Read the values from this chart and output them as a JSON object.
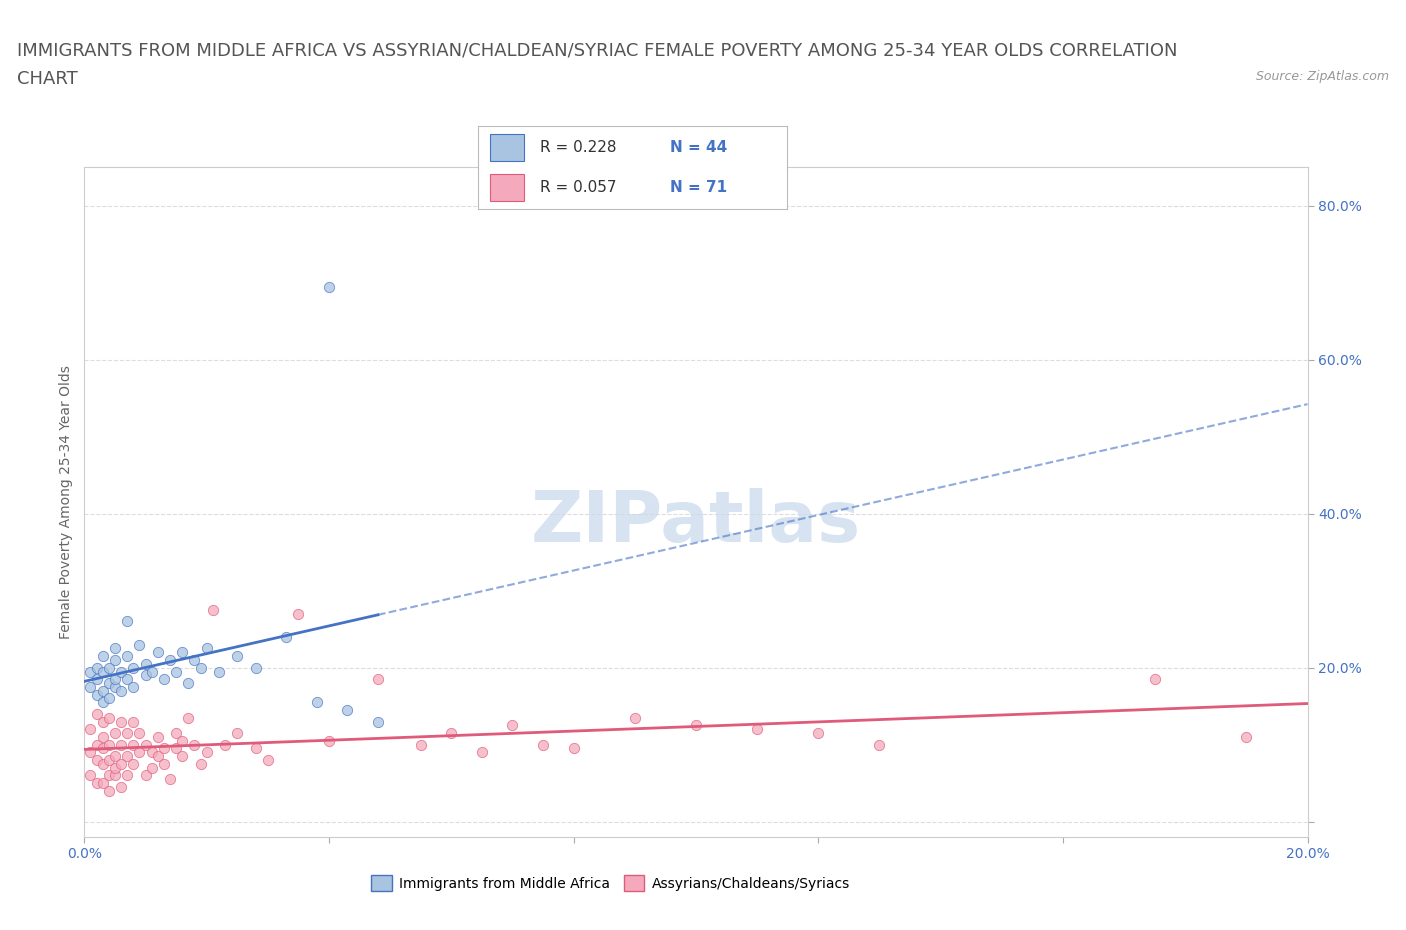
{
  "title_line1": "IMMIGRANTS FROM MIDDLE AFRICA VS ASSYRIAN/CHALDEAN/SYRIAC FEMALE POVERTY AMONG 25-34 YEAR OLDS CORRELATION",
  "title_line2": "CHART",
  "source": "Source: ZipAtlas.com",
  "ylabel": "Female Poverty Among 25-34 Year Olds",
  "xlim": [
    0.0,
    0.2
  ],
  "ylim": [
    -0.02,
    0.85
  ],
  "x_ticks": [
    0.0,
    0.04,
    0.08,
    0.12,
    0.16,
    0.2
  ],
  "y_ticks": [
    0.0,
    0.2,
    0.4,
    0.6,
    0.8
  ],
  "watermark": "ZIPatlas",
  "blue_color": "#A8C4E0",
  "pink_color": "#F4AABC",
  "blue_line_color": "#4472C4",
  "pink_line_color": "#E05A7A",
  "blue_scatter": [
    [
      0.001,
      0.175
    ],
    [
      0.001,
      0.195
    ],
    [
      0.002,
      0.165
    ],
    [
      0.002,
      0.185
    ],
    [
      0.002,
      0.2
    ],
    [
      0.003,
      0.17
    ],
    [
      0.003,
      0.155
    ],
    [
      0.003,
      0.215
    ],
    [
      0.003,
      0.195
    ],
    [
      0.004,
      0.18
    ],
    [
      0.004,
      0.2
    ],
    [
      0.004,
      0.16
    ],
    [
      0.005,
      0.175
    ],
    [
      0.005,
      0.21
    ],
    [
      0.005,
      0.185
    ],
    [
      0.005,
      0.225
    ],
    [
      0.006,
      0.195
    ],
    [
      0.006,
      0.17
    ],
    [
      0.007,
      0.215
    ],
    [
      0.007,
      0.185
    ],
    [
      0.007,
      0.26
    ],
    [
      0.008,
      0.2
    ],
    [
      0.008,
      0.175
    ],
    [
      0.009,
      0.23
    ],
    [
      0.01,
      0.19
    ],
    [
      0.01,
      0.205
    ],
    [
      0.011,
      0.195
    ],
    [
      0.012,
      0.22
    ],
    [
      0.013,
      0.185
    ],
    [
      0.014,
      0.21
    ],
    [
      0.015,
      0.195
    ],
    [
      0.016,
      0.22
    ],
    [
      0.017,
      0.18
    ],
    [
      0.018,
      0.21
    ],
    [
      0.019,
      0.2
    ],
    [
      0.02,
      0.225
    ],
    [
      0.022,
      0.195
    ],
    [
      0.025,
      0.215
    ],
    [
      0.028,
      0.2
    ],
    [
      0.033,
      0.24
    ],
    [
      0.038,
      0.155
    ],
    [
      0.043,
      0.145
    ],
    [
      0.048,
      0.13
    ],
    [
      0.04,
      0.695
    ]
  ],
  "pink_scatter": [
    [
      0.001,
      0.09
    ],
    [
      0.001,
      0.12
    ],
    [
      0.001,
      0.06
    ],
    [
      0.002,
      0.1
    ],
    [
      0.002,
      0.14
    ],
    [
      0.002,
      0.08
    ],
    [
      0.002,
      0.05
    ],
    [
      0.003,
      0.11
    ],
    [
      0.003,
      0.075
    ],
    [
      0.003,
      0.13
    ],
    [
      0.003,
      0.095
    ],
    [
      0.003,
      0.05
    ],
    [
      0.004,
      0.06
    ],
    [
      0.004,
      0.1
    ],
    [
      0.004,
      0.135
    ],
    [
      0.004,
      0.08
    ],
    [
      0.004,
      0.04
    ],
    [
      0.005,
      0.115
    ],
    [
      0.005,
      0.085
    ],
    [
      0.005,
      0.06
    ],
    [
      0.005,
      0.07
    ],
    [
      0.006,
      0.1
    ],
    [
      0.006,
      0.13
    ],
    [
      0.006,
      0.075
    ],
    [
      0.006,
      0.045
    ],
    [
      0.007,
      0.115
    ],
    [
      0.007,
      0.085
    ],
    [
      0.007,
      0.06
    ],
    [
      0.008,
      0.1
    ],
    [
      0.008,
      0.13
    ],
    [
      0.008,
      0.075
    ],
    [
      0.009,
      0.09
    ],
    [
      0.009,
      0.115
    ],
    [
      0.01,
      0.1
    ],
    [
      0.01,
      0.06
    ],
    [
      0.011,
      0.09
    ],
    [
      0.011,
      0.07
    ],
    [
      0.012,
      0.11
    ],
    [
      0.012,
      0.085
    ],
    [
      0.013,
      0.095
    ],
    [
      0.013,
      0.075
    ],
    [
      0.014,
      0.055
    ],
    [
      0.015,
      0.095
    ],
    [
      0.015,
      0.115
    ],
    [
      0.016,
      0.085
    ],
    [
      0.016,
      0.105
    ],
    [
      0.017,
      0.135
    ],
    [
      0.018,
      0.1
    ],
    [
      0.019,
      0.075
    ],
    [
      0.02,
      0.09
    ],
    [
      0.021,
      0.275
    ],
    [
      0.023,
      0.1
    ],
    [
      0.025,
      0.115
    ],
    [
      0.028,
      0.095
    ],
    [
      0.03,
      0.08
    ],
    [
      0.035,
      0.27
    ],
    [
      0.04,
      0.105
    ],
    [
      0.048,
      0.185
    ],
    [
      0.055,
      0.1
    ],
    [
      0.06,
      0.115
    ],
    [
      0.065,
      0.09
    ],
    [
      0.07,
      0.125
    ],
    [
      0.075,
      0.1
    ],
    [
      0.08,
      0.095
    ],
    [
      0.09,
      0.135
    ],
    [
      0.1,
      0.125
    ],
    [
      0.11,
      0.12
    ],
    [
      0.12,
      0.115
    ],
    [
      0.13,
      0.1
    ],
    [
      0.175,
      0.185
    ],
    [
      0.19,
      0.11
    ]
  ],
  "title_fontsize": 13,
  "axis_fontsize": 10,
  "tick_fontsize": 10,
  "background_color": "#FFFFFF",
  "plot_bg_color": "#FFFFFF",
  "grid_color": "#DDDDDD"
}
